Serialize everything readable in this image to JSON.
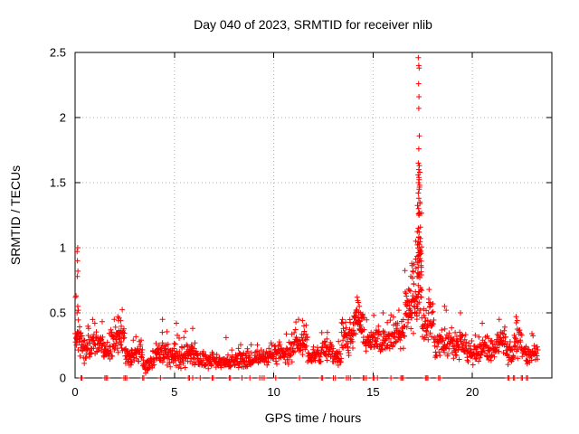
{
  "chart_data": {
    "type": "scatter",
    "title": "Day 040 of 2023, SRMTID for receiver nlib",
    "xlabel": "GPS time / hours",
    "ylabel": "SRMTID / TECUs",
    "xlim": [
      0,
      24
    ],
    "ylim": [
      0,
      2.5
    ],
    "xticks": {
      "values": [
        0,
        5,
        10,
        15,
        20
      ],
      "labels": [
        "0",
        "5",
        "10",
        "15",
        "20"
      ]
    },
    "yticks": {
      "values": [
        0,
        0.5,
        1,
        1.5,
        2,
        2.5
      ],
      "labels": [
        "0",
        "0.5",
        "1",
        "1.5",
        "2",
        "2.5"
      ]
    },
    "grid": true,
    "legend": "none",
    "marker": {
      "shape": "plus",
      "color": "#ff0000",
      "size": 7
    },
    "colors": {
      "axis": "#000000",
      "grid": "#b0b0b0",
      "background": "#ffffff",
      "text": "#000000"
    },
    "series_name": "SRMTID",
    "noise_seed": 9,
    "key_points": [
      [
        0.1,
        0.97
      ],
      [
        0.13,
        1.0
      ],
      [
        0.12,
        0.9
      ],
      [
        0.14,
        0.82
      ],
      [
        0.11,
        0.78
      ],
      [
        0.05,
        0.63
      ],
      [
        0.02,
        0.62
      ],
      [
        0.13,
        0.55
      ],
      [
        0.16,
        0.52
      ],
      [
        0.1,
        0.5
      ],
      [
        2.15,
        0.47
      ],
      [
        2.22,
        0.46
      ],
      [
        2.3,
        0.44
      ],
      [
        4.4,
        0.45
      ],
      [
        5.1,
        0.42
      ],
      [
        5.55,
        0.36
      ],
      [
        5.92,
        0.38
      ],
      [
        7.6,
        0.31
      ],
      [
        11.45,
        0.44
      ],
      [
        11.52,
        0.4
      ],
      [
        12.7,
        0.35
      ],
      [
        14.2,
        0.62
      ],
      [
        14.26,
        0.58
      ],
      [
        14.31,
        0.55
      ],
      [
        14.15,
        0.52
      ],
      [
        14.36,
        0.5
      ],
      [
        15.5,
        0.5
      ],
      [
        16.3,
        0.52
      ],
      [
        16.95,
        0.88
      ],
      [
        17.0,
        0.82
      ],
      [
        16.9,
        0.78
      ],
      [
        17.05,
        0.72
      ],
      [
        17.28,
        2.46
      ],
      [
        17.3,
        2.4
      ],
      [
        17.32,
        2.38
      ],
      [
        17.29,
        2.26
      ],
      [
        17.31,
        2.16
      ],
      [
        17.3,
        2.07
      ],
      [
        17.33,
        1.86
      ],
      [
        17.3,
        1.76
      ],
      [
        17.28,
        1.65
      ],
      [
        17.33,
        1.63
      ],
      [
        17.3,
        1.6
      ],
      [
        17.35,
        1.58
      ],
      [
        17.27,
        1.56
      ],
      [
        17.31,
        1.54
      ],
      [
        17.29,
        1.5
      ],
      [
        17.34,
        1.48
      ],
      [
        17.32,
        1.45
      ],
      [
        17.28,
        1.42
      ],
      [
        17.3,
        1.38
      ],
      [
        17.36,
        1.35
      ],
      [
        17.29,
        1.3
      ],
      [
        17.33,
        1.27
      ],
      [
        17.31,
        1.25
      ],
      [
        17.28,
        1.15
      ],
      [
        17.32,
        1.12
      ],
      [
        17.3,
        1.08
      ],
      [
        17.29,
        0.94
      ],
      [
        17.33,
        0.9
      ],
      [
        17.27,
        0.85
      ],
      [
        17.31,
        0.8
      ],
      [
        17.35,
        0.77
      ],
      [
        17.4,
        0.68
      ],
      [
        17.43,
        0.62
      ],
      [
        17.8,
        0.58
      ],
      [
        17.86,
        0.55
      ],
      [
        18.6,
        0.55
      ],
      [
        18.68,
        0.52
      ],
      [
        19.4,
        0.5
      ],
      [
        20.5,
        0.42
      ],
      [
        21.35,
        0.45
      ],
      [
        22.2,
        0.47
      ],
      [
        22.26,
        0.44
      ],
      [
        23.0,
        0.34
      ]
    ],
    "zero_points": [
      0.3,
      0.34,
      1.5,
      1.56,
      1.63,
      2.46,
      2.53,
      2.6,
      3.4,
      3.46,
      4.3,
      5.7,
      5.76,
      5.92,
      6.3,
      6.9,
      6.96,
      7.76,
      7.82,
      8.4,
      8.8,
      9.3,
      9.42,
      9.52,
      10.1,
      11.3,
      12.4,
      12.46,
      13.0,
      13.1,
      13.66,
      13.76,
      13.86,
      14.5,
      14.56,
      14.66,
      15.0,
      15.06,
      15.22,
      15.9,
      16.4,
      16.46,
      16.52,
      17.64,
      17.7,
      17.76,
      18.3,
      18.36,
      21.78,
      21.84,
      22.06,
      22.12,
      22.46,
      22.52,
      22.72,
      22.78
    ],
    "band_segments": [
      [
        0.0,
        0.3,
        0.3,
        0.17,
        25
      ],
      [
        0.3,
        0.8,
        0.22,
        0.13,
        35
      ],
      [
        0.8,
        1.4,
        0.26,
        0.12,
        40
      ],
      [
        1.4,
        1.9,
        0.21,
        0.1,
        33
      ],
      [
        1.9,
        2.5,
        0.31,
        0.14,
        45
      ],
      [
        2.5,
        3.0,
        0.17,
        0.1,
        33
      ],
      [
        3.0,
        3.4,
        0.2,
        0.1,
        26
      ],
      [
        3.4,
        4.0,
        0.1,
        0.07,
        38
      ],
      [
        4.0,
        4.7,
        0.21,
        0.12,
        48
      ],
      [
        4.7,
        5.4,
        0.17,
        0.11,
        45
      ],
      [
        5.4,
        6.2,
        0.18,
        0.12,
        52
      ],
      [
        6.2,
        7.2,
        0.13,
        0.08,
        60
      ],
      [
        7.2,
        8.1,
        0.12,
        0.07,
        55
      ],
      [
        8.1,
        9.0,
        0.14,
        0.08,
        55
      ],
      [
        9.0,
        10.0,
        0.16,
        0.09,
        60
      ],
      [
        10.0,
        11.0,
        0.19,
        0.1,
        62
      ],
      [
        11.0,
        11.7,
        0.26,
        0.12,
        45
      ],
      [
        11.7,
        12.4,
        0.18,
        0.1,
        42
      ],
      [
        12.4,
        13.0,
        0.22,
        0.11,
        38
      ],
      [
        13.0,
        13.4,
        0.14,
        0.09,
        25
      ],
      [
        13.4,
        14.0,
        0.3,
        0.15,
        45
      ],
      [
        14.0,
        14.5,
        0.42,
        0.17,
        40
      ],
      [
        14.5,
        15.2,
        0.3,
        0.13,
        45
      ],
      [
        15.2,
        16.0,
        0.28,
        0.14,
        50
      ],
      [
        16.0,
        16.6,
        0.33,
        0.15,
        40
      ],
      [
        16.6,
        17.0,
        0.55,
        0.22,
        40
      ],
      [
        17.0,
        17.2,
        0.62,
        0.28,
        22
      ],
      [
        17.2,
        17.45,
        0.85,
        0.5,
        55
      ],
      [
        17.45,
        18.1,
        0.4,
        0.18,
        45
      ],
      [
        18.1,
        18.9,
        0.28,
        0.14,
        50
      ],
      [
        18.9,
        19.6,
        0.26,
        0.13,
        45
      ],
      [
        19.6,
        20.4,
        0.2,
        0.11,
        50
      ],
      [
        20.4,
        21.2,
        0.22,
        0.12,
        50
      ],
      [
        21.2,
        21.7,
        0.28,
        0.13,
        32
      ],
      [
        21.7,
        22.1,
        0.2,
        0.1,
        26
      ],
      [
        22.1,
        22.45,
        0.28,
        0.13,
        22
      ],
      [
        22.45,
        23.3,
        0.19,
        0.1,
        50
      ]
    ]
  }
}
